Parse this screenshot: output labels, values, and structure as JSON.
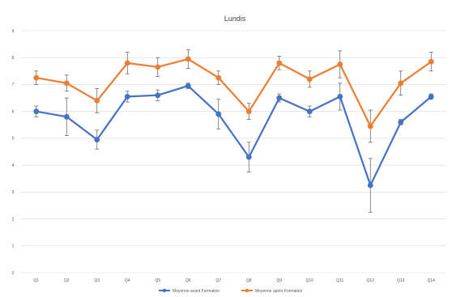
{
  "chart_data": {
    "type": "line",
    "title": "Lundis",
    "xlabel": "",
    "ylabel": "",
    "ylim": [
      0,
      9
    ],
    "yticks": [
      0,
      1,
      2,
      3,
      4,
      5,
      6,
      7,
      8,
      9
    ],
    "grid": true,
    "legend_position": "bottom",
    "categories": [
      "Q1",
      "Q2",
      "Q3",
      "Q4",
      "Q5",
      "Q6",
      "Q7",
      "Q8",
      "Q9",
      "Q10",
      "Q11",
      "Q12",
      "Q13",
      "Q14"
    ],
    "series": [
      {
        "name": "Moyenne avant Formation",
        "color": "#4472c4",
        "values": [
          6.0,
          5.8,
          4.95,
          6.55,
          6.6,
          6.95,
          5.9,
          4.3,
          6.5,
          6.0,
          6.55,
          3.25,
          5.6,
          6.55
        ],
        "error": [
          0.2,
          0.7,
          0.35,
          0.2,
          0.2,
          0.1,
          0.55,
          0.55,
          0.15,
          0.2,
          0.5,
          1.0,
          0.1,
          0.1
        ]
      },
      {
        "name": "Moyenne après Formation",
        "color": "#ed7d31",
        "values": [
          7.25,
          7.05,
          6.4,
          7.8,
          7.65,
          7.95,
          7.25,
          6.0,
          7.8,
          7.2,
          7.75,
          5.45,
          7.05,
          7.85
        ],
        "error": [
          0.25,
          0.3,
          0.45,
          0.4,
          0.35,
          0.35,
          0.25,
          0.3,
          0.25,
          0.3,
          0.5,
          0.6,
          0.45,
          0.35
        ]
      }
    ]
  }
}
